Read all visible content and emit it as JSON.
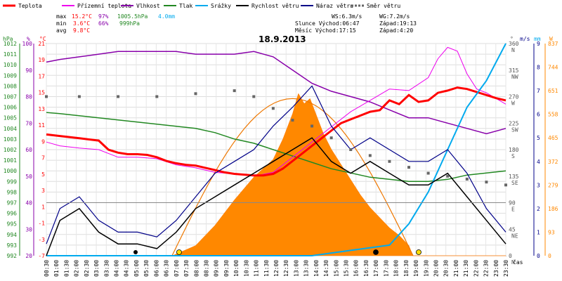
{
  "chart_data": {
    "type": "line",
    "title": "18.9.2013",
    "legend": [
      {
        "name": "Teplota",
        "color": "#ff0000"
      },
      {
        "name": "Přízemní teplota",
        "color": "#ee00ee"
      },
      {
        "name": "Vlhkost",
        "color": "#8800aa"
      },
      {
        "name": "Tlak",
        "color": "#228822"
      },
      {
        "name": "Srážky",
        "color": "#00aaee"
      },
      {
        "name": "Rychlost větru",
        "color": "#000000"
      },
      {
        "name": "Náraz větru",
        "color": "#000088"
      },
      {
        "name": "Směr větru",
        "color": "#666666"
      }
    ],
    "stats": {
      "max_label": "max",
      "max_temp": "15.2°C",
      "max_hum": "97%",
      "max_press": "1005.5hPa",
      "max_rain": "4.0mm",
      "min_label": "min",
      "min_temp": "3.6°C",
      "min_hum": "66%",
      "min_press": "999hPa",
      "avg_label": "avg",
      "avg_temp": "9.8°C",
      "ws": "WS:6.3m/s",
      "wg": "WG:7.2m/s",
      "sunrise": "Slunce Východ:06:47",
      "sunset": "Západ:19:13",
      "moonrise": "Měsíc  Východ:17:15",
      "moonset": "Západ:4:20"
    },
    "axis_units": {
      "pressure": "hPa",
      "humidity": "%",
      "temperature": "°C",
      "direction": "°",
      "wind": "m/s",
      "rain": "mm",
      "solar": "W"
    },
    "xlabel": "čas",
    "x_ticks": [
      "00:30",
      "01:00",
      "01:30",
      "02:00",
      "02:30",
      "03:00",
      "03:30",
      "04:00",
      "04:30",
      "05:00",
      "05:30",
      "06:00",
      "06:30",
      "07:00",
      "07:30",
      "08:00",
      "08:30",
      "09:00",
      "09:30",
      "10:00",
      "10:30",
      "11:00",
      "11:30",
      "12:00",
      "12:30",
      "13:00",
      "13:30",
      "14:00",
      "14:30",
      "15:00",
      "15:30",
      "16:00",
      "16:30",
      "17:00",
      "17:30",
      "18:00",
      "18:30",
      "19:00",
      "19:30",
      "20:00",
      "20:30",
      "21:00",
      "21:30",
      "22:00",
      "22:30",
      "23:00",
      "23:30"
    ],
    "pressure_ticks": [
      "992",
      "993",
      "994",
      "995",
      "996",
      "997",
      "998",
      "999",
      "1000",
      "1001",
      "1002",
      "1003",
      "1004",
      "1005",
      "1006",
      "1007",
      "1008",
      "1009",
      "1010",
      "1011",
      "1012"
    ],
    "humidity_ticks": [
      "20",
      "30",
      "40",
      "50",
      "60",
      "70",
      "80",
      "90",
      "100"
    ],
    "temp_ticks": [
      "-7",
      "-3",
      "-1",
      "1",
      "3",
      "5",
      "7",
      "9",
      "11",
      "13",
      "15",
      "17",
      "19",
      "21"
    ],
    "dir_ticks": [
      "0",
      "45",
      "90",
      "135",
      "180",
      "225",
      "270",
      "315",
      "360"
    ],
    "dir_names": [
      "N",
      "NE",
      "E",
      "SE",
      "S",
      "SW",
      "W",
      "NW",
      "N"
    ],
    "wind_ticks": [
      "0",
      "1",
      "2",
      "3",
      "4",
      "5",
      "6",
      "7",
      "8",
      "9"
    ],
    "rain_ticks": [
      "0",
      "1",
      "2",
      "3",
      "4"
    ],
    "solar_ticks": [
      "0",
      "93",
      "186",
      "279",
      "372",
      "465",
      "558",
      "651",
      "744",
      "837"
    ],
    "ranges": {
      "time_h": [
        0.3,
        24
      ],
      "temp": [
        -7,
        21
      ],
      "humidity": [
        20,
        100
      ],
      "pressure": [
        992,
        1012
      ],
      "direction": [
        0,
        360
      ],
      "wind": [
        0,
        9
      ],
      "rain": [
        0,
        4
      ],
      "solar": [
        0,
        837
      ]
    },
    "series": {
      "temperature": [
        [
          0.3,
          9.0
        ],
        [
          1,
          8.8
        ],
        [
          2,
          8.5
        ],
        [
          3,
          8.2
        ],
        [
          3.5,
          7.0
        ],
        [
          4,
          6.6
        ],
        [
          4.5,
          6.4
        ],
        [
          5,
          6.4
        ],
        [
          5.5,
          6.3
        ],
        [
          6,
          6.0
        ],
        [
          6.5,
          5.5
        ],
        [
          7,
          5.2
        ],
        [
          7.5,
          5.0
        ],
        [
          8,
          4.9
        ],
        [
          8.5,
          4.6
        ],
        [
          9,
          4.3
        ],
        [
          9.5,
          4.0
        ],
        [
          10,
          3.8
        ],
        [
          10.5,
          3.7
        ],
        [
          11,
          3.6
        ],
        [
          11.5,
          3.6
        ],
        [
          12,
          3.8
        ],
        [
          12.5,
          4.5
        ],
        [
          13,
          5.5
        ],
        [
          13.5,
          6.5
        ],
        [
          14,
          7.5
        ],
        [
          14.5,
          8.5
        ],
        [
          15,
          9.5
        ],
        [
          15.5,
          10.5
        ],
        [
          16,
          11.0
        ],
        [
          16.5,
          11.5
        ],
        [
          17,
          12.0
        ],
        [
          17.5,
          12.2
        ],
        [
          18,
          13.5
        ],
        [
          18.5,
          13.0
        ],
        [
          19,
          14.2
        ],
        [
          19.5,
          13.3
        ],
        [
          20,
          13.5
        ],
        [
          20.5,
          14.5
        ],
        [
          21,
          14.8
        ],
        [
          21.5,
          15.2
        ],
        [
          22,
          15.0
        ],
        [
          22.5,
          14.6
        ],
        [
          23,
          14.2
        ],
        [
          23.5,
          13.8
        ],
        [
          24,
          13.5
        ]
      ],
      "ground_temperature": [
        [
          0.3,
          8.0
        ],
        [
          1,
          7.5
        ],
        [
          2,
          7.2
        ],
        [
          3,
          7.0
        ],
        [
          4,
          6.0
        ],
        [
          5,
          6.0
        ],
        [
          6,
          5.8
        ],
        [
          7,
          5.0
        ],
        [
          8,
          4.6
        ],
        [
          9,
          4.0
        ],
        [
          10,
          3.8
        ],
        [
          11,
          3.5
        ],
        [
          12,
          4.0
        ],
        [
          13,
          6.0
        ],
        [
          14,
          8.0
        ],
        [
          15,
          10.0
        ],
        [
          16,
          12.0
        ],
        [
          17,
          13.5
        ],
        [
          18,
          15.0
        ],
        [
          19,
          14.8
        ],
        [
          20,
          16.5
        ],
        [
          20.5,
          19.0
        ],
        [
          21,
          20.5
        ],
        [
          21.5,
          20.0
        ],
        [
          22,
          17.0
        ],
        [
          22.5,
          15.0
        ],
        [
          23,
          14.5
        ],
        [
          24,
          13.0
        ]
      ],
      "humidity": [
        [
          0.3,
          93
        ],
        [
          1,
          94
        ],
        [
          2,
          95
        ],
        [
          3,
          96
        ],
        [
          4,
          97
        ],
        [
          5,
          97
        ],
        [
          6,
          97
        ],
        [
          7,
          97
        ],
        [
          8,
          96
        ],
        [
          9,
          96
        ],
        [
          10,
          96
        ],
        [
          11,
          97
        ],
        [
          12,
          95
        ],
        [
          13,
          90
        ],
        [
          14,
          85
        ],
        [
          15,
          82
        ],
        [
          16,
          80
        ],
        [
          17,
          78
        ],
        [
          18,
          75
        ],
        [
          19,
          72
        ],
        [
          20,
          72
        ],
        [
          21,
          70
        ],
        [
          22,
          68
        ],
        [
          23,
          66
        ],
        [
          24,
          68
        ]
      ],
      "pressure": [
        [
          0.3,
          1005.5
        ],
        [
          1,
          1005.4
        ],
        [
          2,
          1005.2
        ],
        [
          3,
          1005.0
        ],
        [
          4,
          1004.8
        ],
        [
          5,
          1004.6
        ],
        [
          6,
          1004.4
        ],
        [
          7,
          1004.2
        ],
        [
          8,
          1004.0
        ],
        [
          9,
          1003.6
        ],
        [
          10,
          1003.0
        ],
        [
          11,
          1002.6
        ],
        [
          12,
          1002.0
        ],
        [
          13,
          1001.4
        ],
        [
          14,
          1000.8
        ],
        [
          15,
          1000.2
        ],
        [
          16,
          999.8
        ],
        [
          17,
          999.4
        ],
        [
          18,
          999.2
        ],
        [
          19,
          999.0
        ],
        [
          20,
          999.0
        ],
        [
          21,
          999.2
        ],
        [
          22,
          999.6
        ],
        [
          23,
          999.8
        ],
        [
          24,
          1000.0
        ]
      ],
      "rain": [
        [
          0.3,
          0
        ],
        [
          14,
          0
        ],
        [
          16,
          0.1
        ],
        [
          18,
          0.2
        ],
        [
          19,
          0.6
        ],
        [
          20,
          1.2
        ],
        [
          21,
          2.0
        ],
        [
          22,
          2.8
        ],
        [
          23,
          3.3
        ],
        [
          24,
          4.0
        ]
      ],
      "wind_speed": [
        [
          0.3,
          0
        ],
        [
          1,
          1.5
        ],
        [
          2,
          2.0
        ],
        [
          3,
          1.0
        ],
        [
          4,
          0.5
        ],
        [
          5,
          0.5
        ],
        [
          6,
          0.3
        ],
        [
          7,
          1.0
        ],
        [
          8,
          2.0
        ],
        [
          9,
          2.5
        ],
        [
          10,
          3.0
        ],
        [
          11,
          3.5
        ],
        [
          12,
          4.0
        ],
        [
          13,
          4.5
        ],
        [
          14,
          5.0
        ],
        [
          15,
          4.0
        ],
        [
          16,
          3.5
        ],
        [
          17,
          4.0
        ],
        [
          18,
          3.5
        ],
        [
          19,
          3.0
        ],
        [
          20,
          3.0
        ],
        [
          21,
          3.5
        ],
        [
          22,
          2.5
        ],
        [
          23,
          1.5
        ],
        [
          24,
          0.5
        ]
      ],
      "wind_gust": [
        [
          0.3,
          0.5
        ],
        [
          1,
          2.0
        ],
        [
          2,
          2.5
        ],
        [
          3,
          1.5
        ],
        [
          4,
          1.0
        ],
        [
          5,
          1.0
        ],
        [
          6,
          0.8
        ],
        [
          7,
          1.5
        ],
        [
          8,
          2.5
        ],
        [
          9,
          3.5
        ],
        [
          10,
          4.0
        ],
        [
          11,
          4.5
        ],
        [
          12,
          5.5
        ],
        [
          13,
          6.3
        ],
        [
          14,
          7.2
        ],
        [
          15,
          5.5
        ],
        [
          16,
          4.5
        ],
        [
          17,
          5.0
        ],
        [
          18,
          4.5
        ],
        [
          19,
          4.0
        ],
        [
          20,
          4.0
        ],
        [
          21,
          4.5
        ],
        [
          22,
          3.5
        ],
        [
          23,
          2.0
        ],
        [
          24,
          1.0
        ]
      ],
      "wind_direction": [
        [
          0.3,
          270
        ],
        [
          2,
          270
        ],
        [
          4,
          270
        ],
        [
          6,
          270
        ],
        [
          8,
          275
        ],
        [
          10,
          280
        ],
        [
          11,
          270
        ],
        [
          12,
          250
        ],
        [
          13,
          230
        ],
        [
          14,
          220
        ],
        [
          15,
          200
        ],
        [
          16,
          180
        ],
        [
          17,
          170
        ],
        [
          18,
          160
        ],
        [
          19,
          150
        ],
        [
          20,
          140
        ],
        [
          21,
          135
        ],
        [
          22,
          130
        ],
        [
          23,
          125
        ],
        [
          24,
          120
        ]
      ],
      "solar": [
        [
          0.3,
          0
        ],
        [
          6.8,
          0
        ],
        [
          8,
          40
        ],
        [
          9,
          120
        ],
        [
          10,
          220
        ],
        [
          11,
          310
        ],
        [
          12,
          380
        ],
        [
          12.5,
          460
        ],
        [
          13,
          560
        ],
        [
          13.3,
          640
        ],
        [
          13.6,
          600
        ],
        [
          13.9,
          620
        ],
        [
          14.2,
          560
        ],
        [
          14.6,
          480
        ],
        [
          15,
          420
        ],
        [
          15.5,
          360
        ],
        [
          16,
          300
        ],
        [
          16.5,
          240
        ],
        [
          17,
          190
        ],
        [
          17.5,
          150
        ],
        [
          18,
          110
        ],
        [
          18.5,
          80
        ],
        [
          19,
          40
        ],
        [
          19.2,
          0
        ],
        [
          24,
          0
        ]
      ]
    }
  }
}
